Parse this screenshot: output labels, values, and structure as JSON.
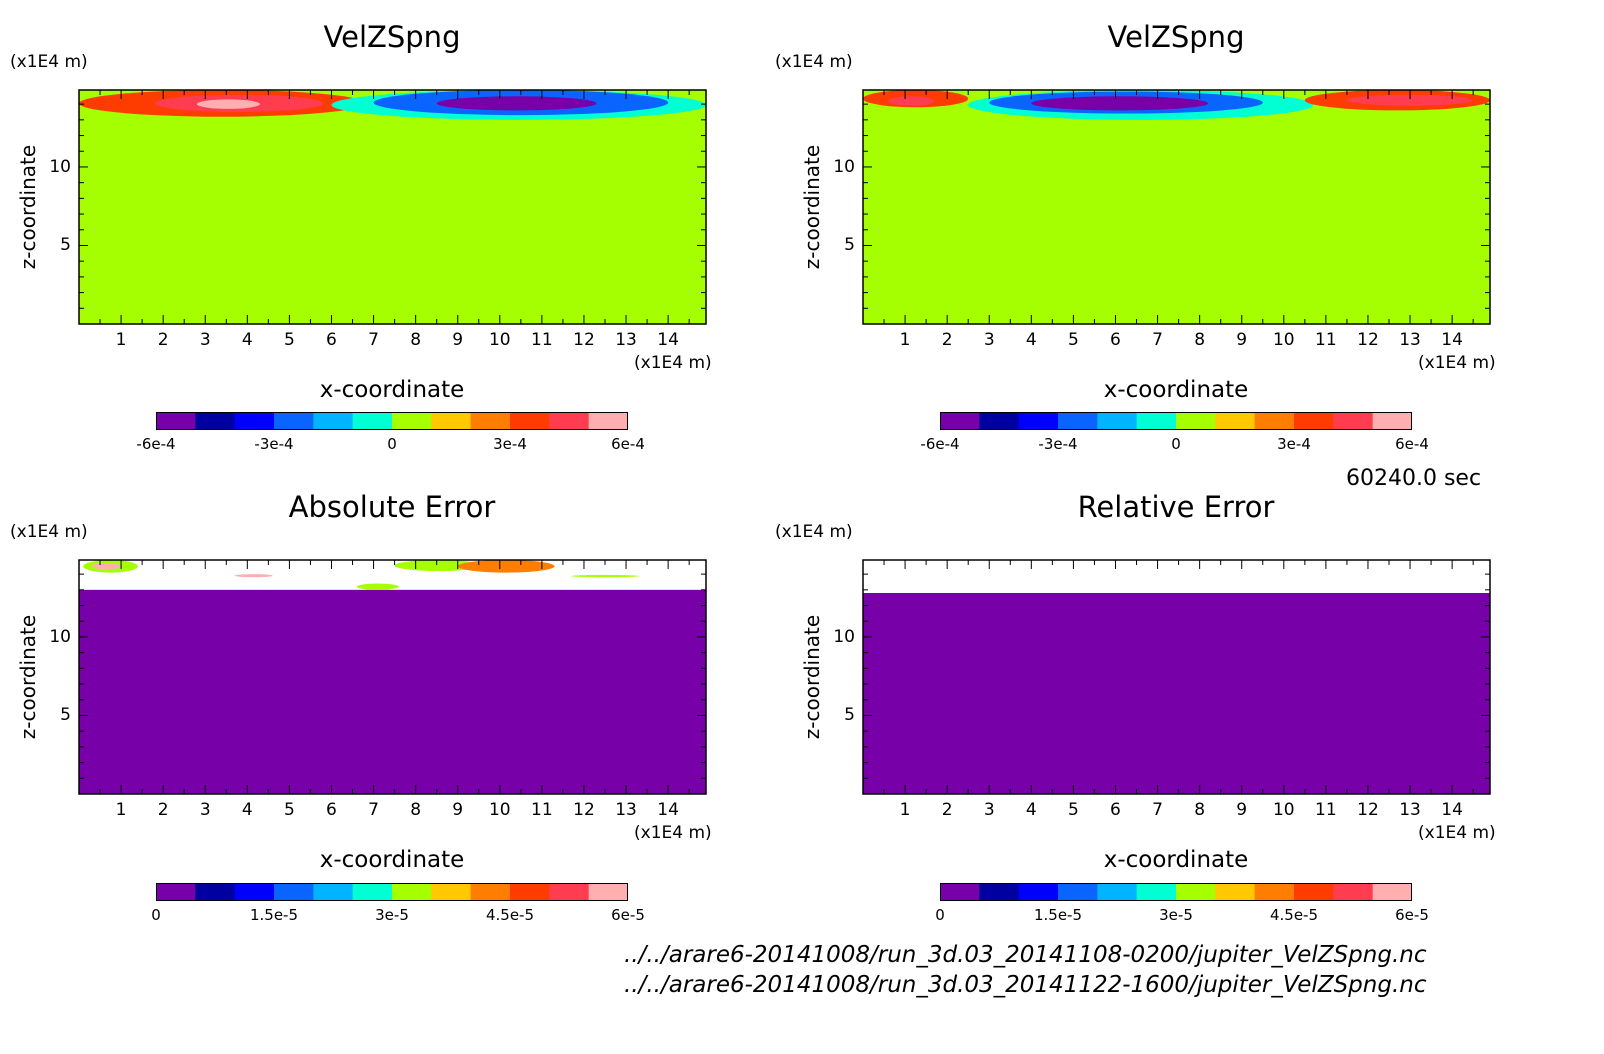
{
  "time_label": "60240.0 sec",
  "files": [
    "../../arare6-20141008/run_3d.03_20141108-0200/jupiter_VelZSpng.nc",
    "../../arare6-20141008/run_3d.03_20141122-1600/jupiter_VelZSpng.nc"
  ],
  "palette": [
    "#7800a8",
    "#0000a0",
    "#0000ff",
    "#0a64ff",
    "#00b4ff",
    "#00ffd2",
    "#a5ff00",
    "#ffc800",
    "#ff7d00",
    "#ff3c00",
    "#ff3c50",
    "#ffafaf"
  ],
  "chart_data": [
    {
      "type": "heatmap",
      "title": "VelZSpng",
      "xlabel": "x-coordinate",
      "ylabel": "z-coordinate",
      "x_unit": "(x1E4 m)",
      "y_unit": "(x1E4 m)",
      "xlim": [
        0,
        14.9
      ],
      "ylim": [
        0,
        14.9
      ],
      "xticks": [
        1,
        2,
        3,
        4,
        5,
        6,
        7,
        8,
        9,
        10,
        11,
        12,
        13,
        14
      ],
      "yticks": [
        5,
        10
      ],
      "colorbar": {
        "min": -0.0006,
        "max": 0.0006,
        "levels": 12,
        "tick_values": [
          -0.0006,
          -0.0003,
          0,
          0.0003,
          0.0006
        ],
        "ticks": [
          "-6e-4",
          "-3e-4",
          "0",
          "3e-4",
          "6e-4"
        ]
      },
      "background_value": 0,
      "layer": {
        "z_from": 12.9,
        "z_to": 14.9
      },
      "features": [
        {
          "x": [
            0,
            6.8
          ],
          "z": [
            13.2,
            14.9
          ],
          "value": 0.0003
        },
        {
          "x": [
            1.8,
            5.8
          ],
          "z": [
            13.5,
            14.6
          ],
          "value": 0.00045
        },
        {
          "x": [
            2.8,
            4.3
          ],
          "z": [
            13.7,
            14.3
          ],
          "value": 0.0006
        },
        {
          "x": [
            6.0,
            14.9
          ],
          "z": [
            13.0,
            14.9
          ],
          "value": -0.0001
        },
        {
          "x": [
            7.0,
            14.0
          ],
          "z": [
            13.3,
            14.9
          ],
          "value": -0.0003
        },
        {
          "x": [
            8.5,
            12.3
          ],
          "z": [
            13.6,
            14.5
          ],
          "value": -0.0005
        },
        {
          "x": [
            10.2,
            11.8
          ],
          "z": [
            13.7,
            14.2
          ],
          "value": -0.0006
        }
      ]
    },
    {
      "type": "heatmap",
      "title": "VelZSpng",
      "xlabel": "x-coordinate",
      "ylabel": "z-coordinate",
      "x_unit": "(x1E4 m)",
      "y_unit": "(x1E4 m)",
      "xlim": [
        0,
        14.9
      ],
      "ylim": [
        0,
        14.9
      ],
      "xticks": [
        1,
        2,
        3,
        4,
        5,
        6,
        7,
        8,
        9,
        10,
        11,
        12,
        13,
        14
      ],
      "yticks": [
        5,
        10
      ],
      "colorbar": {
        "min": -0.0006,
        "max": 0.0006,
        "levels": 12,
        "tick_values": [
          -0.0006,
          -0.0003,
          0,
          0.0003,
          0.0006
        ],
        "ticks": [
          "-6e-4",
          "-3e-4",
          "0",
          "3e-4",
          "6e-4"
        ]
      },
      "background_value": 0,
      "layer": {
        "z_from": 12.9,
        "z_to": 14.9
      },
      "features": [
        {
          "x": [
            0,
            2.5
          ],
          "z": [
            13.8,
            14.9
          ],
          "value": 0.0003
        },
        {
          "x": [
            0.6,
            1.7
          ],
          "z": [
            13.9,
            14.5
          ],
          "value": 0.00045
        },
        {
          "x": [
            2.5,
            10.7
          ],
          "z": [
            13.0,
            14.9
          ],
          "value": -0.0001
        },
        {
          "x": [
            3.0,
            9.5
          ],
          "z": [
            13.4,
            14.8
          ],
          "value": -0.0003
        },
        {
          "x": [
            4.0,
            8.2
          ],
          "z": [
            13.6,
            14.5
          ],
          "value": -0.0005
        },
        {
          "x": [
            10.5,
            14.9
          ],
          "z": [
            13.6,
            14.9
          ],
          "value": 0.0003
        },
        {
          "x": [
            11.5,
            14.5
          ],
          "z": [
            13.9,
            14.6
          ],
          "value": 0.00045
        }
      ]
    },
    {
      "type": "heatmap",
      "title": "Absolute Error",
      "xlabel": "x-coordinate",
      "ylabel": "z-coordinate",
      "x_unit": "(x1E4 m)",
      "y_unit": "(x1E4 m)",
      "xlim": [
        0,
        14.9
      ],
      "ylim": [
        0,
        14.9
      ],
      "xticks": [
        1,
        2,
        3,
        4,
        5,
        6,
        7,
        8,
        9,
        10,
        11,
        12,
        13,
        14
      ],
      "yticks": [
        5,
        10
      ],
      "colorbar": {
        "min": 0,
        "max": 6e-05,
        "levels": 12,
        "tick_values": [
          0,
          1.5e-05,
          3e-05,
          4.5e-05,
          6e-05
        ],
        "ticks": [
          "0",
          "1.5e-5",
          "3e-5",
          "4.5e-5",
          "6e-5"
        ]
      },
      "background_value": 0,
      "layer": {
        "z_from": 13.0,
        "z_to": 14.9,
        "value": null
      },
      "features": [
        {
          "x": [
            0.1,
            1.4
          ],
          "z": [
            14.1,
            14.9
          ],
          "value": 3e-05
        },
        {
          "x": [
            0.3,
            1.0
          ],
          "z": [
            14.3,
            14.7
          ],
          "value": 6e-05
        },
        {
          "x": [
            7.5,
            9.6
          ],
          "z": [
            14.2,
            14.9
          ],
          "value": 3e-05
        },
        {
          "x": [
            9.0,
            11.3
          ],
          "z": [
            14.1,
            14.9
          ],
          "value": 4e-05
        },
        {
          "x": [
            6.6,
            7.6
          ],
          "z": [
            13.0,
            13.4
          ],
          "value": 3e-05
        },
        {
          "x": [
            3.7,
            4.6
          ],
          "z": [
            13.8,
            14.0
          ],
          "value": 5.5e-05
        },
        {
          "x": [
            11.7,
            13.3
          ],
          "z": [
            13.8,
            13.95
          ],
          "value": 3e-05
        }
      ]
    },
    {
      "type": "heatmap",
      "title": "Relative Error",
      "xlabel": "x-coordinate",
      "ylabel": "z-coordinate",
      "x_unit": "(x1E4 m)",
      "y_unit": "(x1E4 m)",
      "xlim": [
        0,
        14.9
      ],
      "ylim": [
        0,
        14.9
      ],
      "xticks": [
        1,
        2,
        3,
        4,
        5,
        6,
        7,
        8,
        9,
        10,
        11,
        12,
        13,
        14
      ],
      "yticks": [
        5,
        10
      ],
      "colorbar": {
        "min": 0,
        "max": 6e-05,
        "levels": 12,
        "tick_values": [
          0,
          1.5e-05,
          3e-05,
          4.5e-05,
          6e-05
        ],
        "ticks": [
          "0",
          "1.5e-5",
          "3e-5",
          "4.5e-5",
          "6e-5"
        ]
      },
      "background_value": 0,
      "layer": {
        "z_from": 12.8,
        "z_to": 14.9,
        "value": null
      },
      "features": []
    }
  ]
}
